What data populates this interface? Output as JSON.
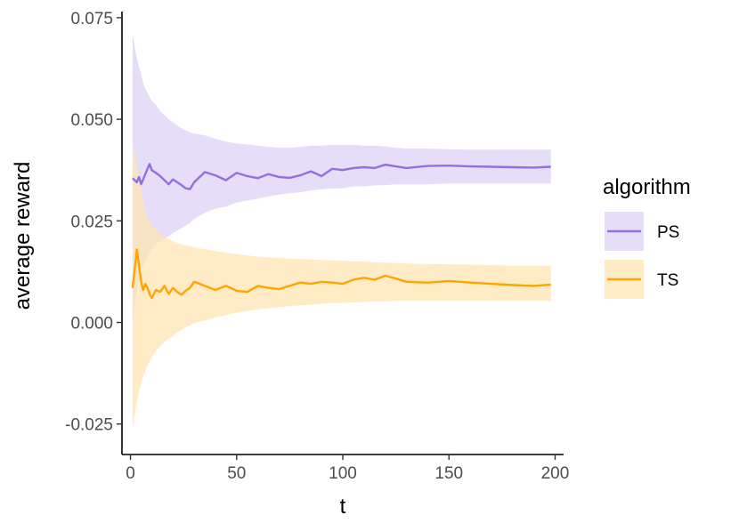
{
  "chart_data": {
    "type": "line",
    "xlabel": "t",
    "ylabel": "average reward",
    "xlim": [
      -4,
      204
    ],
    "ylim": [
      -0.0325,
      0.0765
    ],
    "x_ticks": [
      0,
      50,
      100,
      150,
      200
    ],
    "x_tick_labels": [
      "0",
      "50",
      "100",
      "150",
      "200"
    ],
    "y_ticks": [
      -0.025,
      0.0,
      0.025,
      0.05,
      0.075
    ],
    "y_tick_labels": [
      "-0.025",
      "0.000",
      "0.025",
      "0.050",
      "0.075"
    ],
    "grid": false,
    "legend": {
      "title": "algorithm",
      "placement": "right"
    },
    "series": [
      {
        "name": "PS",
        "color": "#9370DB",
        "band_color": "#DCD0F5",
        "x": [
          1,
          2,
          3,
          4,
          5,
          6,
          7,
          8,
          9,
          10,
          12,
          14,
          16,
          18,
          20,
          22,
          24,
          26,
          28,
          30,
          35,
          40,
          45,
          50,
          55,
          60,
          65,
          70,
          75,
          80,
          85,
          90,
          95,
          100,
          105,
          110,
          115,
          120,
          125,
          130,
          140,
          150,
          160,
          170,
          180,
          190,
          198
        ],
        "y": [
          0.0355,
          0.035,
          0.0345,
          0.0358,
          0.034,
          0.0352,
          0.0365,
          0.0378,
          0.039,
          0.0375,
          0.0368,
          0.036,
          0.035,
          0.034,
          0.0352,
          0.0345,
          0.0338,
          0.033,
          0.0328,
          0.0345,
          0.037,
          0.0362,
          0.035,
          0.0368,
          0.036,
          0.0355,
          0.0365,
          0.0358,
          0.0356,
          0.0362,
          0.0372,
          0.036,
          0.0378,
          0.0375,
          0.038,
          0.0382,
          0.038,
          0.0388,
          0.0384,
          0.038,
          0.0385,
          0.0386,
          0.0384,
          0.0383,
          0.0382,
          0.0381,
          0.0383
        ],
        "lower": [
          0.0,
          0.004,
          0.008,
          0.0105,
          0.0125,
          0.014,
          0.015,
          0.0162,
          0.0172,
          0.018,
          0.0192,
          0.02,
          0.0207,
          0.0212,
          0.022,
          0.0226,
          0.0232,
          0.0238,
          0.0245,
          0.0255,
          0.027,
          0.028,
          0.0285,
          0.0295,
          0.03,
          0.0305,
          0.031,
          0.0315,
          0.0318,
          0.032,
          0.0325,
          0.0328,
          0.033,
          0.033,
          0.0335,
          0.0335,
          0.0337,
          0.0338,
          0.034,
          0.034,
          0.034,
          0.0342,
          0.0342,
          0.0342,
          0.0342,
          0.0342,
          0.0342
        ],
        "upper": [
          0.071,
          0.068,
          0.065,
          0.063,
          0.061,
          0.059,
          0.0575,
          0.0565,
          0.0555,
          0.0545,
          0.0535,
          0.052,
          0.051,
          0.05,
          0.0492,
          0.0485,
          0.0478,
          0.0472,
          0.0468,
          0.0465,
          0.046,
          0.0452,
          0.0445,
          0.044,
          0.0438,
          0.0435,
          0.0432,
          0.043,
          0.043,
          0.0432,
          0.0435,
          0.0435,
          0.0437,
          0.0437,
          0.0437,
          0.0435,
          0.0435,
          0.0433,
          0.043,
          0.0428,
          0.0428,
          0.0426,
          0.0425,
          0.0425,
          0.0425,
          0.0425,
          0.0425
        ]
      },
      {
        "name": "TS",
        "color": "#FFA500",
        "band_color": "#FFE4B0",
        "x": [
          1,
          2,
          3,
          4,
          5,
          6,
          7,
          8,
          9,
          10,
          12,
          14,
          16,
          18,
          20,
          22,
          24,
          26,
          28,
          30,
          35,
          40,
          45,
          50,
          55,
          60,
          65,
          70,
          75,
          80,
          85,
          90,
          95,
          100,
          105,
          110,
          115,
          120,
          125,
          130,
          140,
          150,
          160,
          170,
          180,
          190,
          198
        ],
        "y": [
          0.0085,
          0.013,
          0.018,
          0.014,
          0.01,
          0.008,
          0.0095,
          0.0085,
          0.007,
          0.006,
          0.008,
          0.0075,
          0.009,
          0.007,
          0.0085,
          0.0075,
          0.0068,
          0.0078,
          0.0085,
          0.01,
          0.009,
          0.008,
          0.009,
          0.0078,
          0.0075,
          0.009,
          0.0085,
          0.0082,
          0.009,
          0.0098,
          0.0095,
          0.01,
          0.0098,
          0.0095,
          0.0105,
          0.011,
          0.0105,
          0.0115,
          0.0108,
          0.01,
          0.0098,
          0.0102,
          0.0098,
          0.0095,
          0.0092,
          0.009,
          0.0093
        ],
        "lower": [
          -0.0265,
          -0.023,
          -0.0195,
          -0.017,
          -0.015,
          -0.0132,
          -0.0118,
          -0.0105,
          -0.0095,
          -0.0085,
          -0.007,
          -0.0058,
          -0.0048,
          -0.004,
          -0.0032,
          -0.0025,
          -0.0018,
          -0.0012,
          -0.0007,
          -0.0002,
          0.0005,
          0.0012,
          0.0018,
          0.0024,
          0.0028,
          0.0032,
          0.0035,
          0.0038,
          0.004,
          0.0042,
          0.0044,
          0.0046,
          0.0048,
          0.0048,
          0.005,
          0.005,
          0.0052,
          0.0052,
          0.0053,
          0.0053,
          0.0053,
          0.0053,
          0.0053,
          0.0053,
          0.0053,
          0.0053,
          0.0053
        ],
        "upper": [
          0.044,
          0.042,
          0.039,
          0.036,
          0.033,
          0.03,
          0.028,
          0.0262,
          0.025,
          0.0238,
          0.0228,
          0.0218,
          0.021,
          0.0205,
          0.02,
          0.0196,
          0.0192,
          0.019,
          0.0188,
          0.0185,
          0.018,
          0.0176,
          0.0172,
          0.0168,
          0.0165,
          0.0162,
          0.016,
          0.0158,
          0.0157,
          0.0156,
          0.0155,
          0.0154,
          0.0153,
          0.0152,
          0.015,
          0.015,
          0.0148,
          0.0147,
          0.0146,
          0.0145,
          0.0144,
          0.0143,
          0.0142,
          0.0141,
          0.014,
          0.014,
          0.014
        ]
      }
    ]
  }
}
